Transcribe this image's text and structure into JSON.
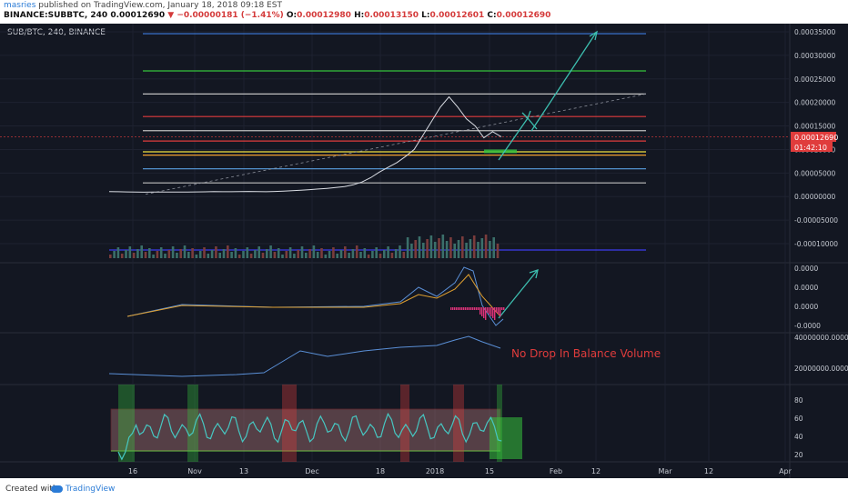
{
  "header": {
    "user": "masries",
    "published_text": "published on TradingView.com, January 18, 2018 09:18 EST",
    "symbol": "BINANCE:SUBBTC, 240",
    "last": "0.00012690",
    "change": "−0.00000181 (−1.41%)",
    "o_label": "O:",
    "o_val": "0.00012980",
    "h_label": "H:",
    "h_val": "0.00013150",
    "l_label": "L:",
    "l_val": "0.00012601",
    "c_label": "C:",
    "c_val": "0.00012690"
  },
  "footer": {
    "created_with": "Created with",
    "brand": "TradingView"
  },
  "chart_data": [
    {
      "type": "line",
      "title": "SUB/BTC, 240, BINANCE",
      "y_ticks": [
        "0.00035000",
        "0.00030000",
        "0.00025000",
        "0.00020000",
        "0.00015000",
        "0.00010000",
        "0.00005000",
        "0.00000000",
        "-0.00005000",
        "-0.00010000"
      ],
      "price_tag": "0.00012690",
      "countdown_tag": "01:42:10",
      "series": [
        {
          "values": [
            1.05e-05,
            1.02e-05,
            9.8e-06,
            9.6e-06,
            9.4e-06,
            9.5e-06,
            9.7e-06,
            9.6e-06,
            9.5e-06,
            9.6e-06,
            9.8e-06,
            1.01e-05,
            1.04e-05,
            1.03e-05,
            1.02e-05,
            1.04e-05,
            1.08e-05,
            1.06e-05,
            1.03e-05,
            1.08e-05,
            1.16e-05,
            1.25e-05,
            1.35e-05,
            1.48e-05,
            1.6e-05,
            1.75e-05,
            1.92e-05,
            2.1e-05,
            2.5e-05,
            3.1e-05,
            4e-05,
            5.2e-05,
            6.2e-05,
            7.2e-05,
            8.5e-05,
            0.0001,
            0.00013,
            0.00016,
            0.00019,
            0.000212,
            0.00019,
            0.000165,
            0.00015,
            0.000125,
            0.000138,
            0.0001269
          ]
        }
      ],
      "horizontal_levels": [
        {
          "value": 0.000346,
          "color": "#3d7be0"
        },
        {
          "value": 0.000267,
          "color": "#36c23d"
        },
        {
          "value": 0.000218,
          "color": "#bfbfbf"
        },
        {
          "value": 0.00017,
          "color": "#e03c3c"
        },
        {
          "value": 0.00014,
          "color": "#bfbfbf"
        },
        {
          "value": 0.000118,
          "color": "#e03c3c"
        },
        {
          "value": 9.5e-05,
          "color": "#f0e040"
        },
        {
          "value": 8.8e-05,
          "color": "#f0a030"
        },
        {
          "value": 5.9e-05,
          "color": "#5aa0e0"
        },
        {
          "value": 2.9e-05,
          "color": "#bfbfbf"
        }
      ]
    },
    {
      "type": "line",
      "title": "",
      "y_ticks": [
        "0.0000",
        "0.0000",
        "0.0000",
        "-0.0000"
      ]
    },
    {
      "type": "line",
      "title": "",
      "y_ticks": [
        "40000000.0000",
        "20000000.0000"
      ],
      "annotations": [
        "No Drop In Balance Volume"
      ]
    },
    {
      "type": "line",
      "title": "",
      "y_ticks": [
        "80",
        "60",
        "40",
        "20"
      ],
      "x_ticks": [
        "16",
        "Nov",
        "13",
        "Dec",
        "18",
        "2018",
        "15",
        "Feb",
        "12",
        "Mar",
        "12",
        "Apr"
      ]
    }
  ]
}
